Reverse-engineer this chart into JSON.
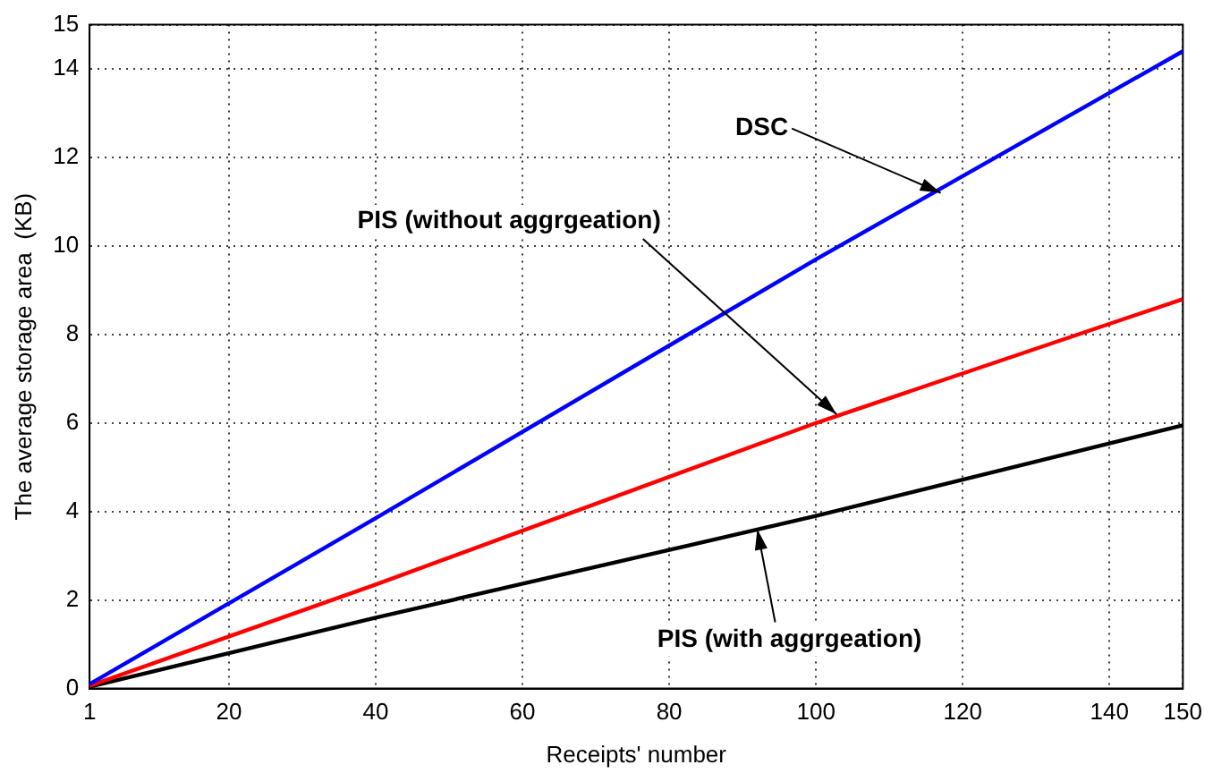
{
  "chart_data": {
    "type": "line",
    "xlabel": "Receipts' number",
    "ylabel": "The average storage area  (KB)",
    "xlim": [
      1,
      150
    ],
    "xticks": [
      1,
      20,
      40,
      60,
      80,
      100,
      120,
      140,
      150
    ],
    "ylim": [
      0,
      15
    ],
    "yticks": [
      0,
      2,
      4,
      6,
      8,
      10,
      12,
      14,
      15
    ],
    "grid": true,
    "legend": false,
    "marker": "none",
    "line_style": "solid",
    "series": [
      {
        "color": "#0000ff",
        "x": [
          1,
          40,
          100,
          150
        ],
        "values": [
          0.1,
          3.85,
          9.7,
          14.4
        ]
      },
      {
        "color": "#ff0000",
        "x": [
          1,
          40,
          100,
          150
        ],
        "values": [
          0.06,
          2.35,
          6.0,
          8.8
        ]
      },
      {
        "color": "#000000",
        "x": [
          1,
          40,
          100,
          150
        ],
        "values": [
          0.04,
          1.6,
          3.9,
          5.95
        ]
      }
    ],
    "annotations": [
      {
        "text": "DSC",
        "x": 117,
        "y": 11.2
      },
      {
        "text": "PIS (without aggrgeation)",
        "x": 102.8,
        "y": 6.2
      },
      {
        "text": "PIS (with aggrgeation)",
        "x": 92,
        "y": 3.6
      }
    ]
  }
}
